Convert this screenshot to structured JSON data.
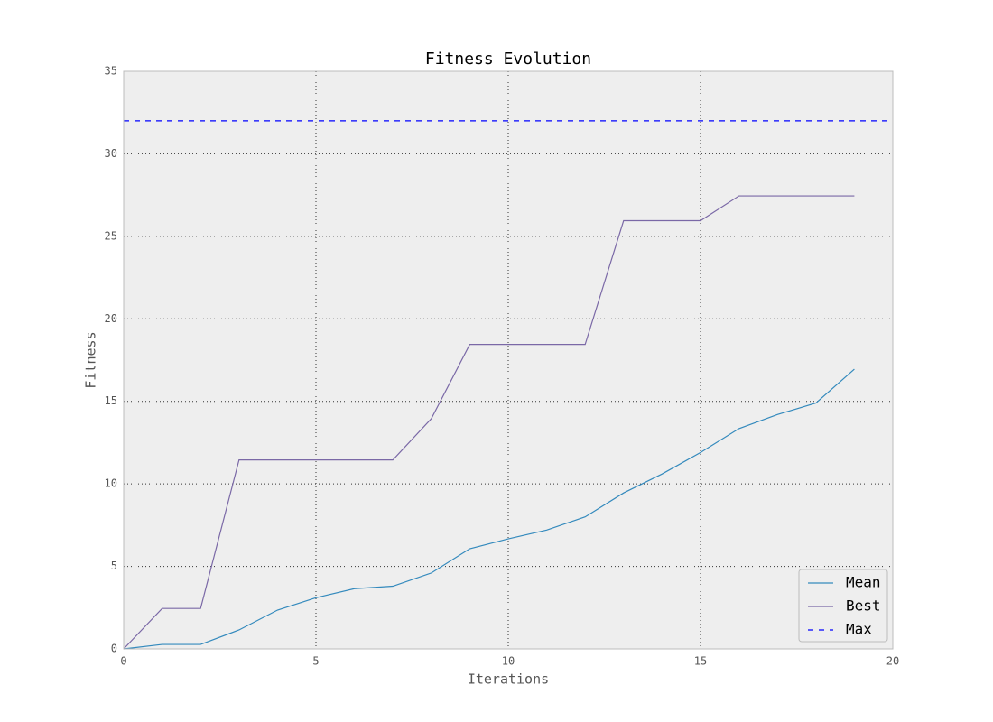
{
  "chart_data": {
    "type": "line",
    "title": "Fitness Evolution",
    "xlabel": "Iterations",
    "ylabel": "Fitness",
    "x": [
      0,
      1,
      2,
      3,
      4,
      5,
      6,
      7,
      8,
      9,
      10,
      11,
      12,
      13,
      14,
      15,
      16,
      17,
      18,
      19
    ],
    "series": [
      {
        "name": "Mean",
        "color": "#348abd",
        "values": [
          0,
          0.27,
          0.27,
          1.15,
          2.35,
          3.1,
          3.65,
          3.8,
          4.6,
          6.07,
          6.67,
          7.2,
          8.0,
          9.45,
          10.6,
          11.9,
          13.35,
          14.2,
          14.9,
          16.95
        ]
      },
      {
        "name": "Best",
        "color": "#7a68a6",
        "values": [
          0,
          2.45,
          2.45,
          11.45,
          11.45,
          11.45,
          11.45,
          11.45,
          13.95,
          18.45,
          18.45,
          18.45,
          18.45,
          25.95,
          25.95,
          25.95,
          27.45,
          27.45,
          27.45,
          27.45
        ]
      },
      {
        "name": "Max",
        "color": "#0000ff",
        "dashed": true,
        "hline": 32
      }
    ],
    "xlim": [
      0,
      20
    ],
    "xticks": [
      0,
      5,
      10,
      15,
      20
    ],
    "ylim": [
      0,
      35
    ],
    "yticks": [
      0,
      5,
      10,
      15,
      20,
      25,
      30,
      35
    ],
    "grid": true,
    "legend": "lower right"
  }
}
